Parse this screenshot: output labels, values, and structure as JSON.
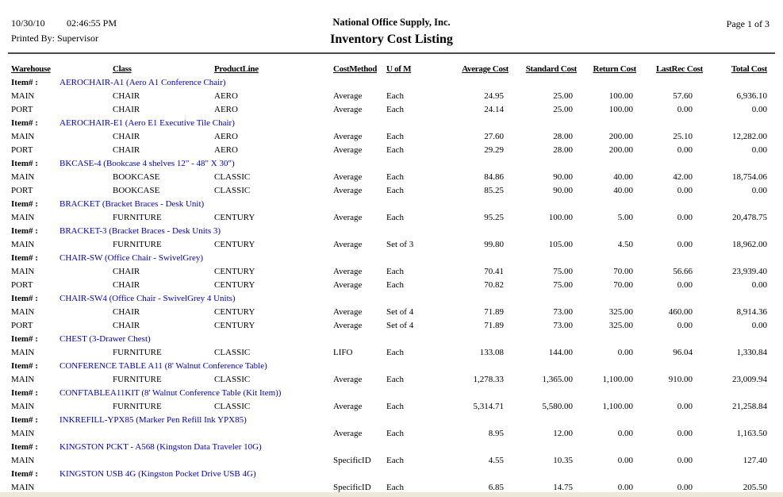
{
  "header": {
    "date": "10/30/10",
    "time": "02:46:55 PM",
    "printed_by": "Printed By: Supervisor",
    "company": "National Office Supply, Inc.",
    "report_title": "Inventory Cost Listing",
    "page_indicator": "Page 1 of 3"
  },
  "colors": {
    "item_link_blue": "#0000CC",
    "text": "#000000",
    "bottom_strip": "#ECE9D8"
  },
  "table": {
    "item_label": "Item# :",
    "columns": [
      "Warehouse",
      "Class",
      "ProductLine",
      "CostMethod",
      "U of M",
      "Average Cost",
      "Standard Cost",
      "Return Cost",
      "LastRec Cost",
      "Total Cost"
    ],
    "groups": [
      {
        "item": "AEROCHAIR-A1 (Aero A1 Conference Chair)",
        "rows": [
          {
            "warehouse": "MAIN",
            "class": "CHAIR",
            "product_line": "AERO",
            "cost_method": "Average",
            "uofm": "Each",
            "average_cost": "24.95",
            "standard_cost": "25.00",
            "return_cost": "100.00",
            "last_rec_cost": "57.60",
            "total_cost": "6,936.10"
          },
          {
            "warehouse": "PORT",
            "class": "CHAIR",
            "product_line": "AERO",
            "cost_method": "Average",
            "uofm": "Each",
            "average_cost": "24.14",
            "standard_cost": "25.00",
            "return_cost": "100.00",
            "last_rec_cost": "0.00",
            "total_cost": "0.00"
          }
        ]
      },
      {
        "item": "AEROCHAIR-E1 (Aero E1 Executive Tile Chair)",
        "rows": [
          {
            "warehouse": "MAIN",
            "class": "CHAIR",
            "product_line": "AERO",
            "cost_method": "Average",
            "uofm": "Each",
            "average_cost": "27.60",
            "standard_cost": "28.00",
            "return_cost": "200.00",
            "last_rec_cost": "25.10",
            "total_cost": "12,282.00"
          },
          {
            "warehouse": "PORT",
            "class": "CHAIR",
            "product_line": "AERO",
            "cost_method": "Average",
            "uofm": "Each",
            "average_cost": "29.29",
            "standard_cost": "28.00",
            "return_cost": "200.00",
            "last_rec_cost": "0.00",
            "total_cost": "0.00"
          }
        ]
      },
      {
        "item": "BKCASE-4 (Bookcase 4 shelves 12\" - 48\" X 30\")",
        "rows": [
          {
            "warehouse": "MAIN",
            "class": "BOOKCASE",
            "product_line": "CLASSIC",
            "cost_method": "Average",
            "uofm": "Each",
            "average_cost": "84.86",
            "standard_cost": "90.00",
            "return_cost": "40.00",
            "last_rec_cost": "42.00",
            "total_cost": "18,754.06"
          },
          {
            "warehouse": "PORT",
            "class": "BOOKCASE",
            "product_line": "CLASSIC",
            "cost_method": "Average",
            "uofm": "Each",
            "average_cost": "85.25",
            "standard_cost": "90.00",
            "return_cost": "40.00",
            "last_rec_cost": "0.00",
            "total_cost": "0.00"
          }
        ]
      },
      {
        "item": "BRACKET (Bracket Braces - Desk Unit)",
        "rows": [
          {
            "warehouse": "MAIN",
            "class": "FURNITURE",
            "product_line": "CENTURY",
            "cost_method": "Average",
            "uofm": "Each",
            "average_cost": "95.25",
            "standard_cost": "100.00",
            "return_cost": "5.00",
            "last_rec_cost": "0.00",
            "total_cost": "20,478.75"
          }
        ]
      },
      {
        "item": "BRACKET-3 (Bracket Braces - Desk Units 3)",
        "rows": [
          {
            "warehouse": "MAIN",
            "class": "FURNITURE",
            "product_line": "CENTURY",
            "cost_method": "Average",
            "uofm": "Set of 3",
            "average_cost": "99.80",
            "standard_cost": "105.00",
            "return_cost": "4.50",
            "last_rec_cost": "0.00",
            "total_cost": "18,962.00"
          }
        ]
      },
      {
        "item": "CHAIR-SW (Office Chair - SwivelGrey)",
        "rows": [
          {
            "warehouse": "MAIN",
            "class": "CHAIR",
            "product_line": "CENTURY",
            "cost_method": "Average",
            "uofm": "Each",
            "average_cost": "70.41",
            "standard_cost": "75.00",
            "return_cost": "70.00",
            "last_rec_cost": "56.66",
            "total_cost": "23,939.40"
          },
          {
            "warehouse": "PORT",
            "class": "CHAIR",
            "product_line": "CENTURY",
            "cost_method": "Average",
            "uofm": "Each",
            "average_cost": "70.82",
            "standard_cost": "75.00",
            "return_cost": "70.00",
            "last_rec_cost": "0.00",
            "total_cost": "0.00"
          }
        ]
      },
      {
        "item": "CHAIR-SW4 (Office Chair - SwivelGrey 4 Units)",
        "rows": [
          {
            "warehouse": "MAIN",
            "class": "CHAIR",
            "product_line": "CENTURY",
            "cost_method": "Average",
            "uofm": "Set of 4",
            "average_cost": "71.89",
            "standard_cost": "73.00",
            "return_cost": "325.00",
            "last_rec_cost": "460.00",
            "total_cost": "8,914.36"
          },
          {
            "warehouse": "PORT",
            "class": "CHAIR",
            "product_line": "CENTURY",
            "cost_method": "Average",
            "uofm": "Set of 4",
            "average_cost": "71.89",
            "standard_cost": "73.00",
            "return_cost": "325.00",
            "last_rec_cost": "0.00",
            "total_cost": "0.00"
          }
        ]
      },
      {
        "item": "CHEST (3-Drawer Chest)",
        "rows": [
          {
            "warehouse": "MAIN",
            "class": "FURNITURE",
            "product_line": "CLASSIC",
            "cost_method": "LIFO",
            "uofm": "Each",
            "average_cost": "133.08",
            "standard_cost": "144.00",
            "return_cost": "0.00",
            "last_rec_cost": "96.04",
            "total_cost": "1,330.84"
          }
        ]
      },
      {
        "item": "CONFERENCE TABLE A11 (8' Walnut Conference Table)",
        "rows": [
          {
            "warehouse": "MAIN",
            "class": "FURNITURE",
            "product_line": "CLASSIC",
            "cost_method": "Average",
            "uofm": "Each",
            "average_cost": "1,278.33",
            "standard_cost": "1,365.00",
            "return_cost": "1,100.00",
            "last_rec_cost": "910.00",
            "total_cost": "23,009.94"
          }
        ]
      },
      {
        "item": "CONFTABLEA11KIT (8' Walnut Conference Table (Kit Item))",
        "rows": [
          {
            "warehouse": "MAIN",
            "class": "FURNITURE",
            "product_line": "CLASSIC",
            "cost_method": "Average",
            "uofm": "Each",
            "average_cost": "5,314.71",
            "standard_cost": "5,580.00",
            "return_cost": "1,100.00",
            "last_rec_cost": "0.00",
            "total_cost": "21,258.84"
          }
        ]
      },
      {
        "item": "INKREFILL-YPX85 (Marker Pen Refill Ink YPX85)",
        "rows": [
          {
            "warehouse": "MAIN",
            "class": "",
            "product_line": "",
            "cost_method": "Average",
            "uofm": "Each",
            "average_cost": "8.95",
            "standard_cost": "12.00",
            "return_cost": "0.00",
            "last_rec_cost": "0.00",
            "total_cost": "1,163.50"
          }
        ]
      },
      {
        "item": "KINGSTON PCKT - A568 (Kingston Data Traveler 10G)",
        "rows": [
          {
            "warehouse": "MAIN",
            "class": "",
            "product_line": "",
            "cost_method": "SpecificID",
            "uofm": "Each",
            "average_cost": "4.55",
            "standard_cost": "10.35",
            "return_cost": "0.00",
            "last_rec_cost": "0.00",
            "total_cost": "127.40"
          }
        ]
      },
      {
        "item": "KINGSTON USB 4G (Kingston Pocket Drive USB 4G)",
        "rows": [
          {
            "warehouse": "MAIN",
            "class": "",
            "product_line": "",
            "cost_method": "SpecificID",
            "uofm": "Each",
            "average_cost": "6.85",
            "standard_cost": "14.75",
            "return_cost": "0.00",
            "last_rec_cost": "0.00",
            "total_cost": "205.50"
          }
        ]
      }
    ]
  }
}
